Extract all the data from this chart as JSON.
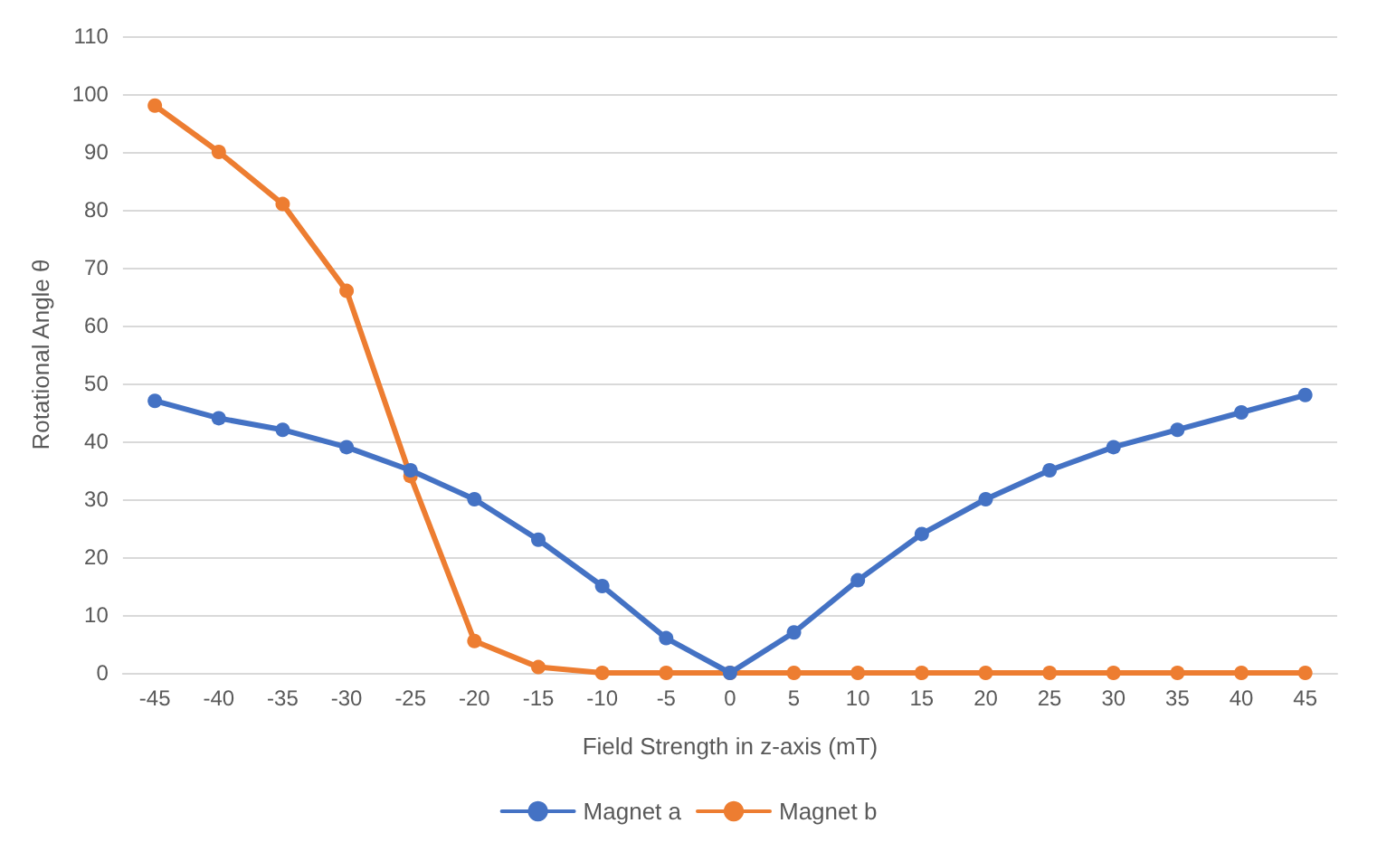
{
  "chart_data": {
    "type": "line",
    "xlabel": "Field Strength in z-axis (mT)",
    "ylabel": "Rotational Angle θ",
    "categories": [
      "-45",
      "-40",
      "-35",
      "-30",
      "-25",
      "-20",
      "-15",
      "-10",
      "-5",
      "0",
      "5",
      "10",
      "15",
      "20",
      "25",
      "30",
      "35",
      "40",
      "45"
    ],
    "series": [
      {
        "name": "Magnet a",
        "color": "#4472c4",
        "values": [
          47,
          44,
          42,
          39,
          35,
          30,
          23,
          15,
          6,
          0,
          7,
          16,
          24,
          30,
          35,
          39,
          42,
          45,
          48
        ]
      },
      {
        "name": "Magnet b",
        "color": "#ed7d31",
        "values": [
          98,
          90,
          81,
          66,
          34,
          5.5,
          1,
          0,
          0,
          0,
          0,
          0,
          0,
          0,
          0,
          0,
          0,
          0,
          0
        ]
      }
    ],
    "ylim": [
      0,
      110
    ],
    "yticks": [
      0,
      10,
      20,
      30,
      40,
      50,
      60,
      70,
      80,
      90,
      100,
      110
    ],
    "grid": "y",
    "legend": "bottom",
    "marker": "circle",
    "line_style": "solid"
  }
}
